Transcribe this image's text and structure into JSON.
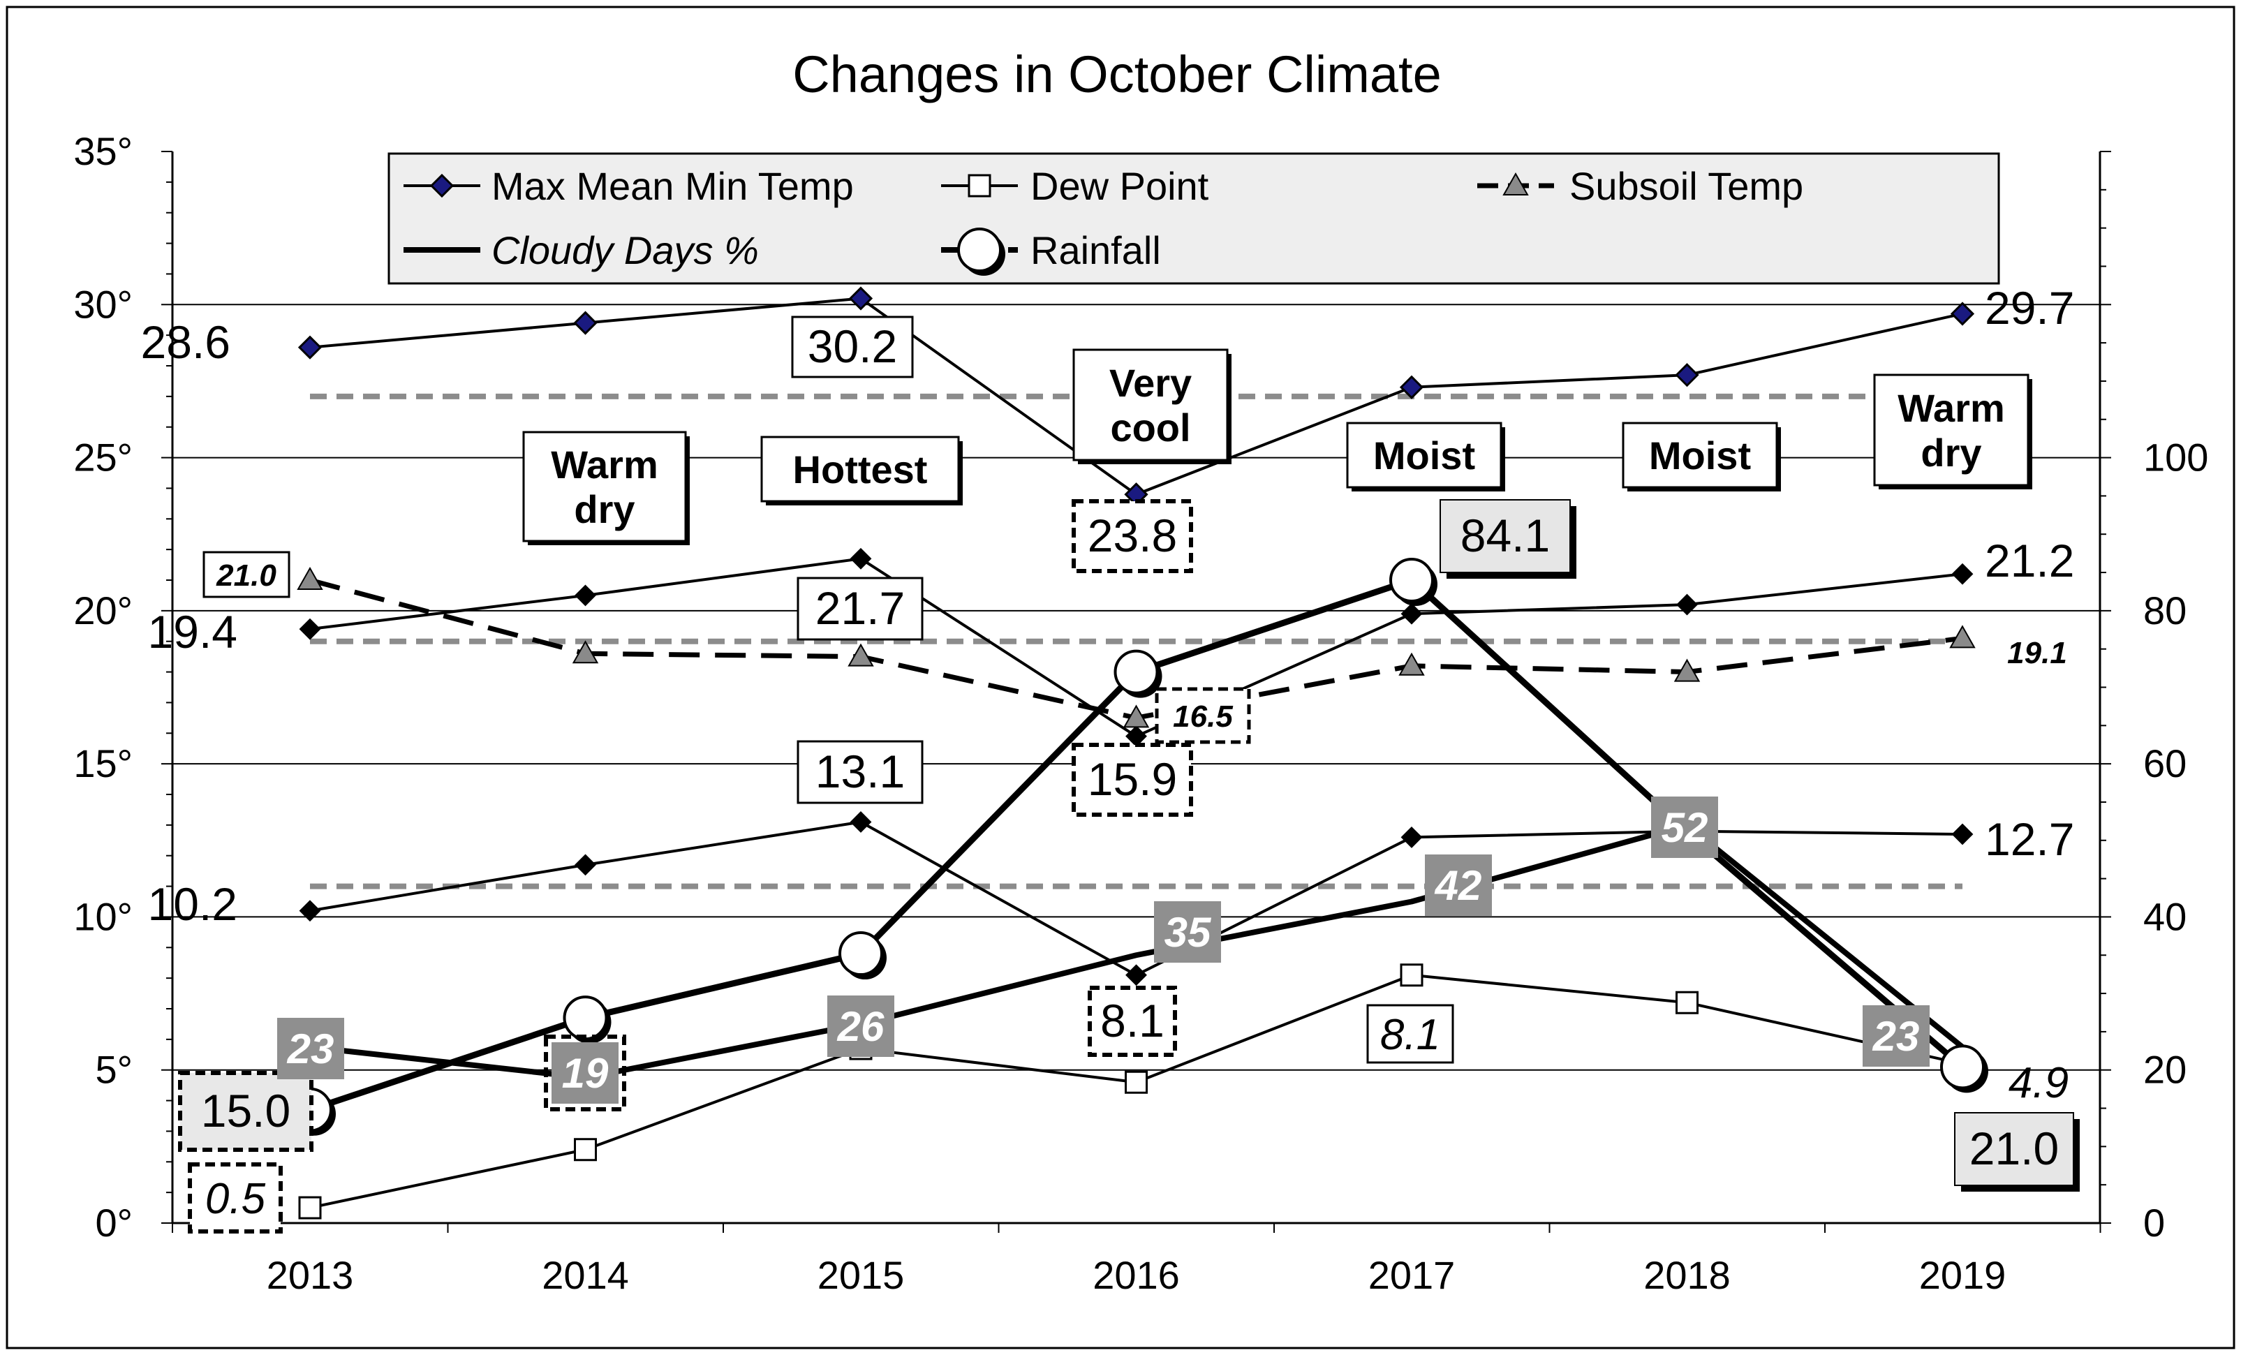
{
  "chart_data": {
    "type": "line",
    "title": "Changes in October Climate",
    "categories": [
      "2013",
      "2014",
      "2015",
      "2016",
      "2017",
      "2018",
      "2019"
    ],
    "y_left": {
      "range": [
        0,
        35
      ],
      "ticks": [
        "0°",
        "5°",
        "10°",
        "15°",
        "20°",
        "25°",
        "30°",
        "35°"
      ]
    },
    "y_right": {
      "range": [
        0,
        140
      ],
      "ticks": [
        "0",
        "20",
        "40",
        "60",
        "80",
        "100"
      ]
    },
    "grid": true,
    "legend": {
      "placement": "top",
      "entries": [
        {
          "label": "Max Mean Min Temp",
          "marker": "diamond",
          "style": "solid"
        },
        {
          "label": "Dew Point",
          "marker": "square",
          "style": "solid"
        },
        {
          "label": "Subsoil Temp",
          "marker": "triangle",
          "style": "dashed"
        },
        {
          "label": "Cloudy Days %",
          "marker": "none",
          "style": "bold"
        },
        {
          "label": "Rainfall",
          "marker": "circle",
          "style": "bold-dashed"
        }
      ]
    },
    "series": [
      {
        "name": "Max Mean Min Temp",
        "group": "max",
        "axis": "left",
        "values": [
          28.6,
          29.4,
          30.2,
          23.8,
          27.3,
          27.7,
          29.7
        ]
      },
      {
        "name": "Max Mean Min Temp",
        "group": "mean",
        "axis": "left",
        "values": [
          19.4,
          20.5,
          21.7,
          15.9,
          19.9,
          20.2,
          21.2
        ]
      },
      {
        "name": "Max Mean Min Temp",
        "group": "min",
        "axis": "left",
        "values": [
          10.2,
          11.7,
          13.1,
          8.1,
          12.6,
          12.8,
          12.7
        ]
      },
      {
        "name": "Dew Point",
        "axis": "left",
        "values": [
          0.5,
          2.4,
          5.7,
          4.6,
          8.1,
          7.2,
          5.2
        ]
      },
      {
        "name": "Subsoil Temp",
        "axis": "left",
        "values": [
          21.0,
          18.6,
          18.5,
          16.5,
          18.2,
          18.0,
          19.1
        ]
      },
      {
        "name": "Cloudy Days %",
        "axis": "right",
        "values": [
          23,
          19,
          26,
          35,
          42,
          52,
          23
        ]
      },
      {
        "name": "Rainfall",
        "axis": "left",
        "values": [
          3.7,
          6.7,
          8.8,
          18.0,
          21.0,
          12.8,
          5.1
        ]
      }
    ],
    "reference_lines": [
      27.0,
      19.0,
      11.0
    ],
    "value_labels": [
      {
        "text": "28.6",
        "series": 0,
        "index": 0
      },
      {
        "text": "30.2",
        "series": 0,
        "index": 2
      },
      {
        "text": "23.8",
        "series": 0,
        "index": 3
      },
      {
        "text": "29.7",
        "series": 0,
        "index": 6
      },
      {
        "text": "19.4",
        "series": 1,
        "index": 0
      },
      {
        "text": "21.7",
        "series": 1,
        "index": 2
      },
      {
        "text": "15.9",
        "series": 1,
        "index": 3
      },
      {
        "text": "21.2",
        "series": 1,
        "index": 6
      },
      {
        "text": "10.2",
        "series": 2,
        "index": 0
      },
      {
        "text": "13.1",
        "series": 2,
        "index": 2
      },
      {
        "text": "8.1",
        "series": 2,
        "index": 3
      },
      {
        "text": "12.7",
        "series": 2,
        "index": 6
      },
      {
        "text": "0.5",
        "series": 3,
        "index": 0
      },
      {
        "text": "8.1",
        "series": 3,
        "index": 4
      },
      {
        "text": "21.0",
        "series": 4,
        "index": 0
      },
      {
        "text": "16.5",
        "series": 4,
        "index": 3
      },
      {
        "text": "19.1",
        "series": 4,
        "index": 6
      },
      {
        "text": "15.0",
        "series": 6,
        "index": 0
      },
      {
        "text": "84.1",
        "series": 6,
        "index": 4
      },
      {
        "text": "4.9",
        "series": 6,
        "index": 6
      },
      {
        "text": "21.0",
        "series": 6,
        "index": 6
      }
    ],
    "cloudy_badges": [
      "23",
      "19",
      "26",
      "35",
      "42",
      "52",
      "23"
    ],
    "annotations": [
      {
        "text": [
          "Warm",
          "dry"
        ],
        "index": 1
      },
      {
        "text": [
          "Hottest"
        ],
        "index": 2
      },
      {
        "text": [
          "Very",
          "cool"
        ],
        "index": 3
      },
      {
        "text": [
          "Moist"
        ],
        "index": 4
      },
      {
        "text": [
          "Moist"
        ],
        "index": 5
      },
      {
        "text": [
          "Warm",
          "dry"
        ],
        "index": 6
      }
    ]
  }
}
